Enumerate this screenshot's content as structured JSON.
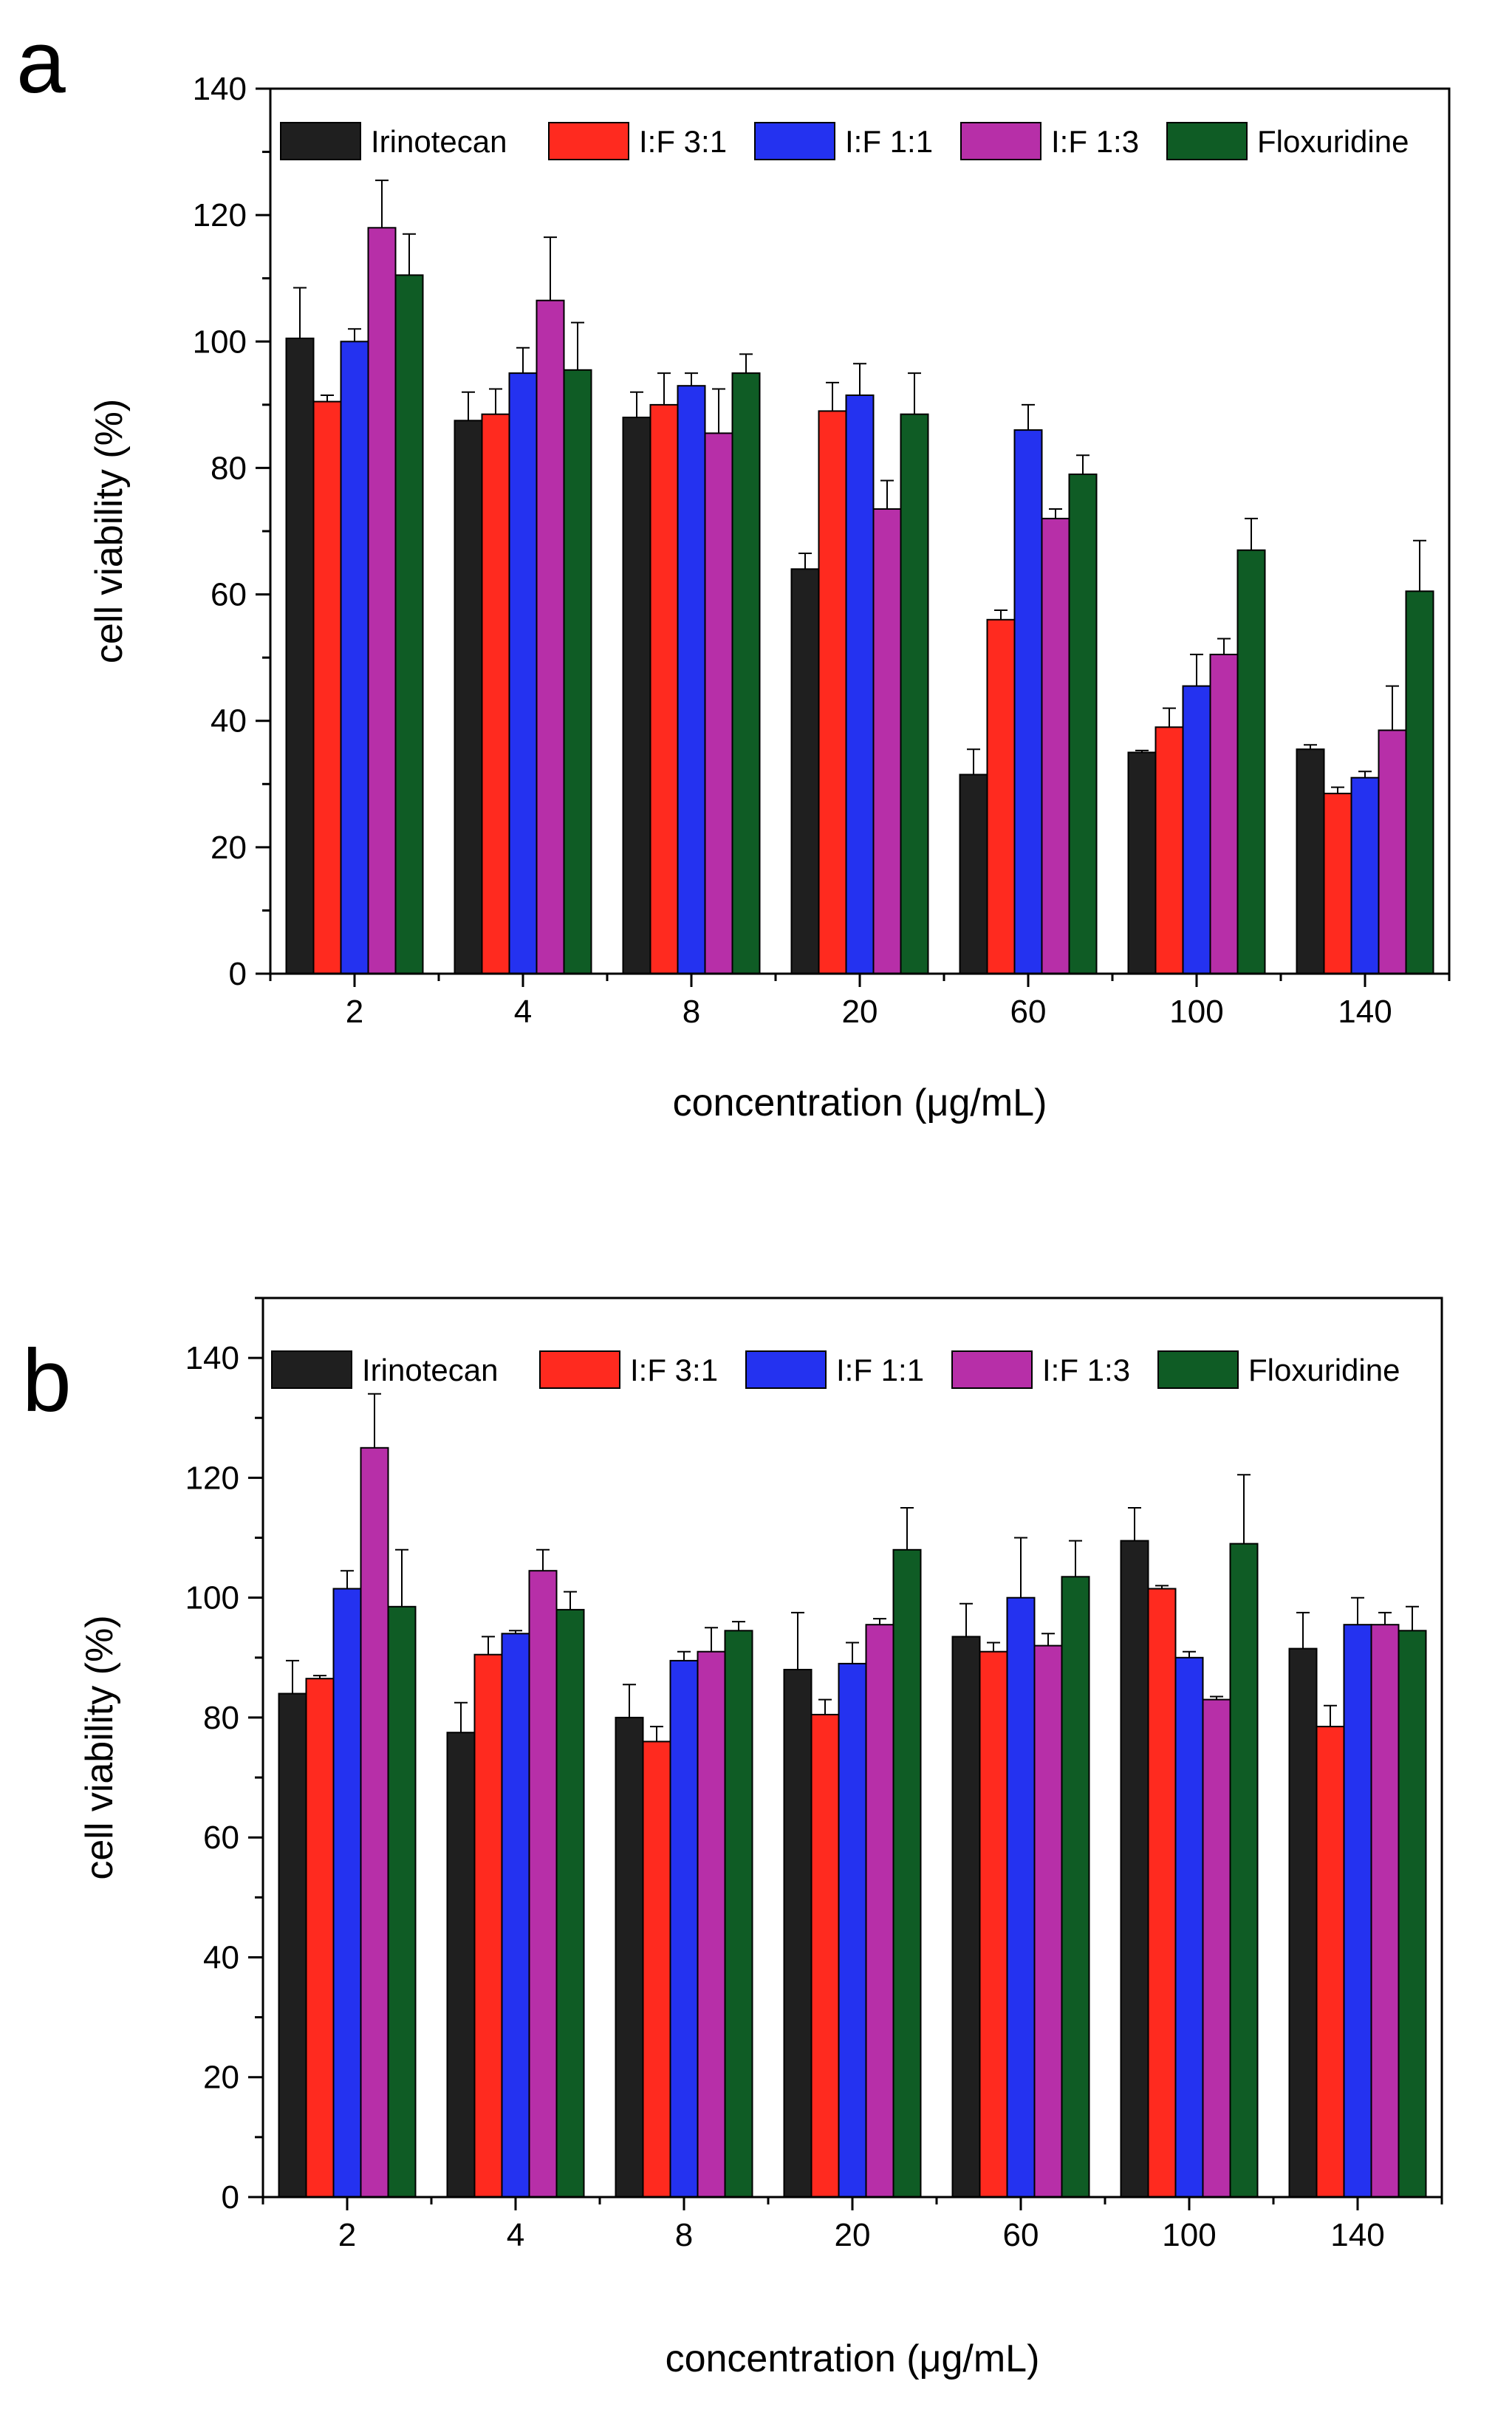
{
  "figure": {
    "series_colors": [
      "#1f1f1f",
      "#ff2a1f",
      "#2432f0",
      "#b72fa8",
      "#0f5c25"
    ]
  },
  "chart_data": [
    {
      "panel": "a",
      "type": "bar",
      "xlabel": "concentration (μg/mL)",
      "ylabel": "cell viability (%)",
      "ylim": [
        0,
        140
      ],
      "yticks": [
        0,
        20,
        40,
        60,
        80,
        100,
        120,
        140
      ],
      "grid": false,
      "legend_position": "top",
      "categories": [
        "2",
        "4",
        "8",
        "20",
        "60",
        "100",
        "140"
      ],
      "series": [
        {
          "name": "Irinotecan",
          "values": [
            100.5,
            87.5,
            88.0,
            64.0,
            31.5,
            35.0,
            35.5
          ],
          "errors": [
            8.0,
            4.5,
            4.0,
            2.5,
            4.0,
            0.3,
            0.7
          ]
        },
        {
          "name": "I:F 3:1",
          "values": [
            90.5,
            88.5,
            90.0,
            89.0,
            56.0,
            39.0,
            28.5
          ],
          "errors": [
            1.0,
            4.0,
            5.0,
            4.5,
            1.5,
            3.0,
            1.0
          ]
        },
        {
          "name": "I:F 1:1",
          "values": [
            100.0,
            95.0,
            93.0,
            91.5,
            86.0,
            45.5,
            31.0
          ],
          "errors": [
            2.0,
            4.0,
            2.0,
            5.0,
            4.0,
            5.0,
            1.0
          ]
        },
        {
          "name": "I:F 1:3",
          "values": [
            118.0,
            106.5,
            85.5,
            73.5,
            72.0,
            50.5,
            38.5
          ],
          "errors": [
            7.5,
            10.0,
            7.0,
            4.5,
            1.5,
            2.5,
            7.0
          ]
        },
        {
          "name": "Floxuridine",
          "values": [
            110.5,
            95.5,
            95.0,
            88.5,
            79.0,
            67.0,
            60.5
          ],
          "errors": [
            6.5,
            7.5,
            3.0,
            6.5,
            3.0,
            5.0,
            8.0
          ]
        }
      ]
    },
    {
      "panel": "b",
      "type": "bar",
      "xlabel": "concentration (μg/mL)",
      "ylabel": "cell viability (%)",
      "ylim": [
        0,
        150
      ],
      "yticks": [
        0,
        20,
        40,
        60,
        80,
        100,
        120,
        140
      ],
      "grid": false,
      "legend_position": "top",
      "categories": [
        "2",
        "4",
        "8",
        "20",
        "60",
        "100",
        "140"
      ],
      "series": [
        {
          "name": "Irinotecan",
          "values": [
            84.0,
            77.5,
            80.0,
            88.0,
            93.5,
            109.5,
            91.5
          ],
          "errors": [
            5.5,
            5.0,
            5.5,
            9.5,
            5.5,
            5.5,
            6.0
          ]
        },
        {
          "name": "I:F 3:1",
          "values": [
            86.5,
            90.5,
            76.0,
            80.5,
            91.0,
            101.5,
            78.5
          ],
          "errors": [
            0.5,
            3.0,
            2.5,
            2.5,
            1.5,
            0.5,
            3.5
          ]
        },
        {
          "name": "I:F 1:1",
          "values": [
            101.5,
            94.0,
            89.5,
            89.0,
            100.0,
            90.0,
            95.5
          ],
          "errors": [
            3.0,
            0.5,
            1.5,
            3.5,
            10.0,
            1.0,
            4.5
          ]
        },
        {
          "name": "I:F 1:3",
          "values": [
            125.0,
            104.5,
            91.0,
            95.5,
            92.0,
            83.0,
            95.5
          ],
          "errors": [
            9.0,
            3.5,
            4.0,
            1.0,
            2.0,
            0.5,
            2.0
          ]
        },
        {
          "name": "Floxuridine",
          "values": [
            98.5,
            98.0,
            94.5,
            108.0,
            103.5,
            109.0,
            94.5
          ],
          "errors": [
            9.5,
            3.0,
            1.5,
            7.0,
            6.0,
            11.5,
            4.0
          ]
        }
      ]
    }
  ]
}
